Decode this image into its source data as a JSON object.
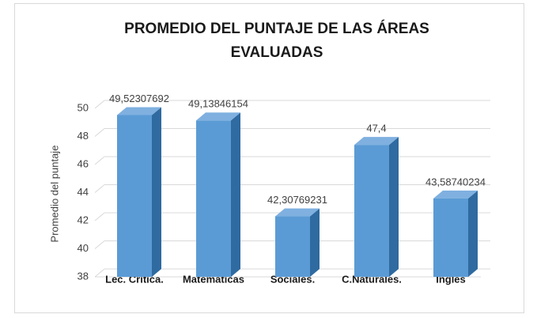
{
  "chart_data": {
    "type": "bar3d",
    "title": "PROMEDIO DEL PUNTAJE DE LAS ÁREAS EVALUADAS",
    "y_label": "Promedio del puntaje",
    "categories": [
      "Lec. Crítica.",
      "Matematicas",
      "Sociales.",
      "C.Naturales.",
      "Ingles"
    ],
    "values": [
      49.52307692,
      49.13846154,
      42.30769231,
      47.4,
      43.58740234
    ],
    "value_labels": [
      "49,52307692",
      "49,13846154",
      "42,30769231",
      "47,4",
      "43,58740234"
    ],
    "color": "#5b9bd5",
    "ylim": [
      38,
      50
    ],
    "yticks": [
      38,
      40,
      42,
      44,
      46,
      48,
      50
    ],
    "grid": true
  }
}
